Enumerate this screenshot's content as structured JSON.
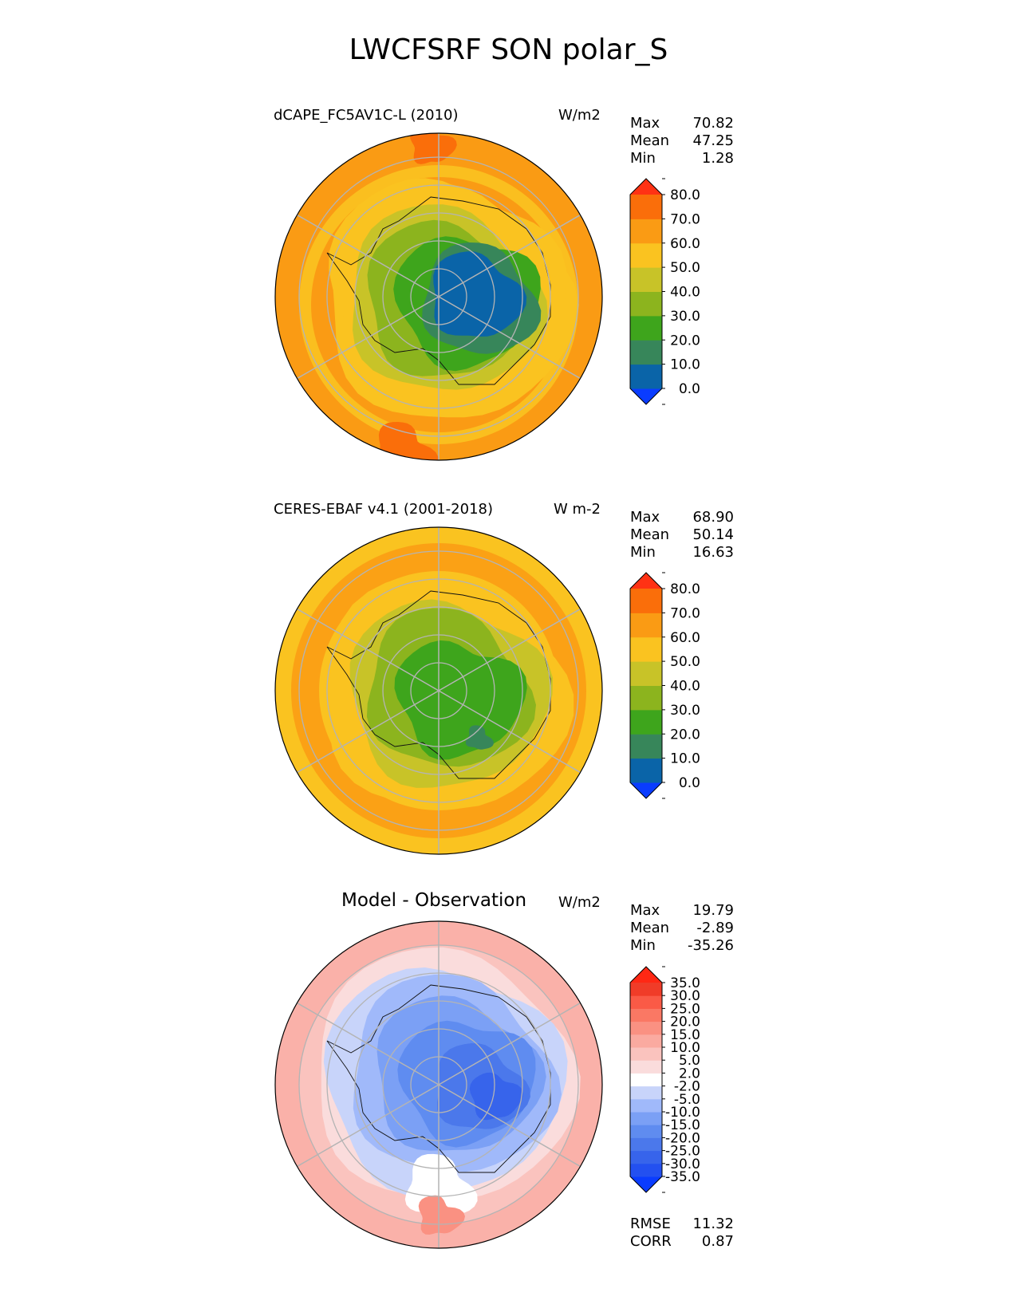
{
  "figure_title": "LWCFSRF SON polar_S",
  "panels": [
    {
      "title": "dCAPE_FC5AV1C-L (2010)",
      "units": "W/m2",
      "stats": [
        {
          "label": "Max",
          "value": "70.82"
        },
        {
          "label": "Mean",
          "value": "47.25"
        },
        {
          "label": "Min",
          "value": "1.28"
        }
      ]
    },
    {
      "title": "CERES-EBAF v4.1 (2001-2018)",
      "units": "W m-2",
      "stats": [
        {
          "label": "Max",
          "value": "68.90"
        },
        {
          "label": "Mean",
          "value": "50.14"
        },
        {
          "label": "Min",
          "value": "16.63"
        }
      ]
    },
    {
      "title": "Model - Observation",
      "units": "W/m2",
      "stats": [
        {
          "label": "Max",
          "value": "19.79"
        },
        {
          "label": "Mean",
          "value": "-2.89"
        },
        {
          "label": "Min",
          "value": "-35.26"
        }
      ],
      "extra_stats": [
        {
          "label": "RMSE",
          "value": "11.32"
        },
        {
          "label": "CORR",
          "value": "0.87"
        }
      ]
    }
  ],
  "chart_data": [
    {
      "type": "heatmap",
      "projection": "south-polar-stereographic",
      "title": "dCAPE_FC5AV1C-L (2010)",
      "units": "W/m2",
      "colorbar": {
        "levels": [
          0.0,
          10.0,
          20.0,
          30.0,
          40.0,
          50.0,
          60.0,
          70.0,
          80.0
        ],
        "tick_labels": [
          "0.0",
          "10.0",
          "20.0",
          "30.0",
          "40.0",
          "50.0",
          "60.0",
          "70.0",
          "80.0"
        ],
        "colors": [
          "#0a3cff",
          "#0a64a8",
          "#37865a",
          "#3ea51c",
          "#8cb41e",
          "#c8c328",
          "#fac320",
          "#fa9b14",
          "#fa6e0a",
          "#ff3214"
        ],
        "extend": "both"
      },
      "max": 70.82,
      "mean": 47.25,
      "min": 1.28
    },
    {
      "type": "heatmap",
      "projection": "south-polar-stereographic",
      "title": "CERES-EBAF v4.1 (2001-2018)",
      "units": "W m-2",
      "colorbar": {
        "levels": [
          0.0,
          10.0,
          20.0,
          30.0,
          40.0,
          50.0,
          60.0,
          70.0,
          80.0
        ],
        "tick_labels": [
          "0.0",
          "10.0",
          "20.0",
          "30.0",
          "40.0",
          "50.0",
          "60.0",
          "70.0",
          "80.0"
        ],
        "colors": [
          "#0a3cff",
          "#0a64a8",
          "#37865a",
          "#3ea51c",
          "#8cb41e",
          "#c8c328",
          "#fac320",
          "#fa9b14",
          "#fa6e0a",
          "#ff3214"
        ],
        "extend": "both"
      },
      "max": 68.9,
      "mean": 50.14,
      "min": 16.63
    },
    {
      "type": "heatmap",
      "projection": "south-polar-stereographic",
      "title": "Model - Observation",
      "units": "W/m2",
      "colorbar": {
        "levels": [
          -35,
          -30,
          -25,
          -20,
          -15,
          -10,
          -5,
          -2,
          2,
          5,
          10,
          15,
          20,
          25,
          30,
          35
        ],
        "tick_labels": [
          "-35.0",
          "-30.0",
          "-25.0",
          "-20.0",
          "-15.0",
          "-10.0",
          "-5.0",
          "-2.0",
          "2.0",
          "5.0",
          "10.0",
          "15.0",
          "20.0",
          "25.0",
          "30.0",
          "35.0"
        ],
        "colors": [
          "#0a3cff",
          "#2350f0",
          "#3764eb",
          "#4b78eb",
          "#5f8cf0",
          "#7ba0f5",
          "#a0b9fa",
          "#c8d4fa",
          "#ffffff",
          "#fadcdc",
          "#fac3be",
          "#faaaa0",
          "#fa9182",
          "#fa7864",
          "#fa5a46",
          "#f03c28",
          "#ff2814"
        ],
        "extend": "both"
      },
      "max": 19.79,
      "mean": -2.89,
      "min": -35.26,
      "rmse": 11.32,
      "corr": 0.87
    }
  ]
}
